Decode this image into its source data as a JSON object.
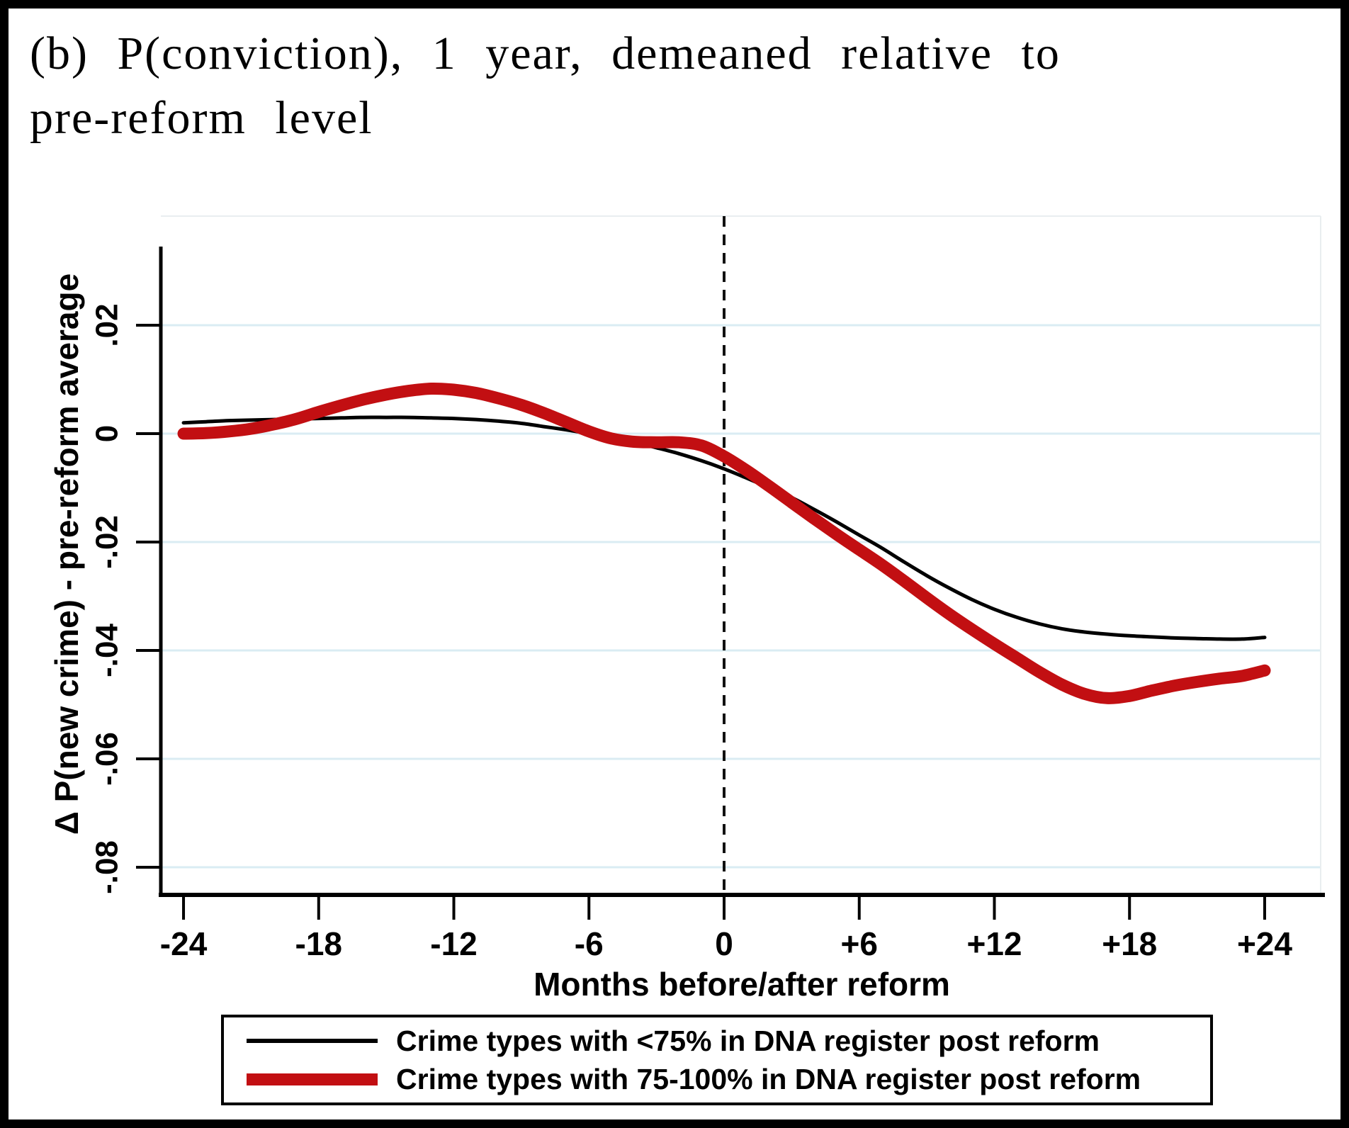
{
  "figure": {
    "title_line1": "(b) P(conviction), 1 year, demeaned relative to",
    "title_line2": "pre-reform level"
  },
  "chart_data": {
    "type": "line",
    "title": "(b) P(conviction), 1 year, demeaned relative to pre-reform level",
    "xlabel": "Months before/after reform",
    "ylabel": "Δ P(new crime) - pre-reform average",
    "xlim": [
      -25,
      26.6
    ],
    "ylim": [
      -0.085,
      0.04
    ],
    "grid": true,
    "legend_position": "below",
    "reference_line_x": 0,
    "x_tick_values": [
      -24,
      -18,
      -12,
      -6,
      0,
      6,
      12,
      18,
      24
    ],
    "x_tick_labels": [
      "-24",
      "-18",
      "-12",
      "-6",
      "0",
      "+6",
      "+12",
      "+18",
      "+24"
    ],
    "y_tick_values": [
      0.02,
      0,
      -0.02,
      -0.04,
      -0.06,
      -0.08
    ],
    "y_tick_labels": [
      ".02",
      "0",
      "-.02",
      "-.04",
      "-.06",
      "-.08"
    ],
    "x": [
      -24,
      -23,
      -22,
      -21,
      -20,
      -19,
      -18,
      -17,
      -16,
      -15,
      -14,
      -13,
      -12,
      -11,
      -10,
      -9,
      -8,
      -7,
      -6,
      -5,
      -4,
      -3,
      -2,
      -1,
      0,
      1,
      2,
      3,
      4,
      5,
      6,
      7,
      8,
      9,
      10,
      11,
      12,
      13,
      14,
      15,
      16,
      17,
      18,
      19,
      20,
      21,
      22,
      23,
      24
    ],
    "series": [
      {
        "name": "Crime types with <75% in DNA register post reform",
        "color": "#000000",
        "stroke_width": 5,
        "values": [
          0.002,
          0.0022,
          0.0024,
          0.0025,
          0.0026,
          0.0027,
          0.0028,
          0.0029,
          0.003,
          0.003,
          0.003,
          0.0029,
          0.0028,
          0.0026,
          0.0023,
          0.0019,
          0.0013,
          0.0007,
          0.0,
          -0.0008,
          -0.0016,
          -0.0026,
          -0.0037,
          -0.005,
          -0.0065,
          -0.0082,
          -0.01,
          -0.0118,
          -0.014,
          -0.0163,
          -0.0187,
          -0.0211,
          -0.0237,
          -0.0262,
          -0.0285,
          -0.0306,
          -0.0324,
          -0.0339,
          -0.0351,
          -0.036,
          -0.0366,
          -0.037,
          -0.0373,
          -0.0375,
          -0.0377,
          -0.0378,
          -0.0379,
          -0.0379,
          -0.0376
        ]
      },
      {
        "name": "Crime types with 75-100% in DNA register post reform",
        "color": "#c20f12",
        "stroke_width": 17,
        "values": [
          0.0,
          0.0001,
          0.0004,
          0.0009,
          0.0017,
          0.0027,
          0.004,
          0.0052,
          0.0063,
          0.0072,
          0.0079,
          0.0083,
          0.0081,
          0.0075,
          0.0065,
          0.0053,
          0.0038,
          0.0021,
          0.0004,
          -0.0009,
          -0.0015,
          -0.0016,
          -0.0016,
          -0.0022,
          -0.0042,
          -0.0068,
          -0.0097,
          -0.0127,
          -0.0157,
          -0.0186,
          -0.0214,
          -0.0242,
          -0.0272,
          -0.0303,
          -0.0333,
          -0.0361,
          -0.0388,
          -0.0414,
          -0.044,
          -0.0463,
          -0.048,
          -0.0488,
          -0.0484,
          -0.0474,
          -0.0465,
          -0.0458,
          -0.0452,
          -0.0447,
          -0.0437
        ]
      }
    ]
  },
  "colors": {
    "grid": "#daecf3",
    "plot_border": "#e9eef0",
    "axis": "#000000",
    "reference_line": "#111111",
    "background": "#ffffff"
  }
}
